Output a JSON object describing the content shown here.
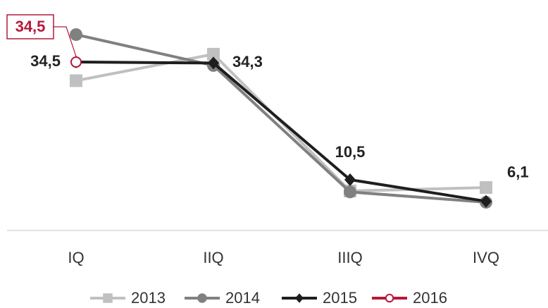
{
  "chart_data": {
    "type": "line",
    "categories": [
      "IQ",
      "IIQ",
      "IIIQ",
      "IVQ"
    ],
    "ylim": [
      0,
      45
    ],
    "series": [
      {
        "name": "2013",
        "color": "#c0c0c0",
        "marker": "square",
        "values": [
          30.7,
          36.1,
          8.2,
          8.9
        ]
      },
      {
        "name": "2014",
        "color": "#808080",
        "marker": "circle",
        "values": [
          40.1,
          33.8,
          8.0,
          5.9
        ]
      },
      {
        "name": "2015",
        "color": "#1e1e1e",
        "marker": "diamond",
        "values": [
          34.5,
          34.3,
          10.5,
          6.1
        ],
        "value_labels": [
          "34,5",
          "34,3",
          "10,5",
          "6,1"
        ]
      },
      {
        "name": "2016",
        "color": "#b5193a",
        "marker": "open-circle",
        "values": [
          34.5,
          null,
          null,
          null
        ],
        "value_labels": [
          "34,5",
          null,
          null,
          null
        ]
      }
    ]
  }
}
